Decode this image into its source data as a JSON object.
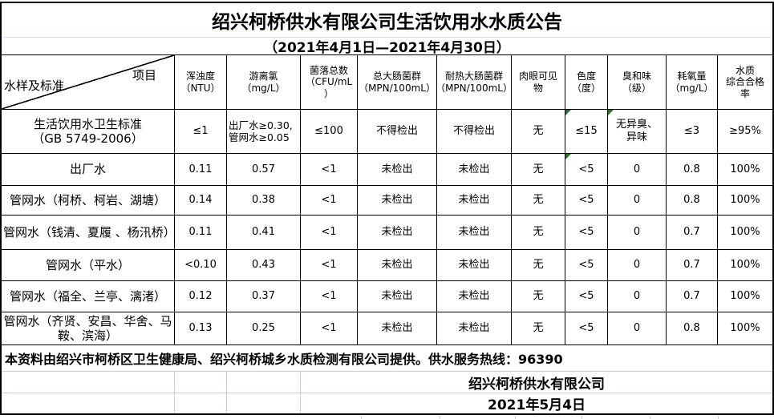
{
  "title": "绍兴柯桥供水有限公司生活饮用水水质公告",
  "subtitle": "（2021年4月1日—2021年4月30日）",
  "corner": {
    "item_label": "项目",
    "sample_label": "水样及标准"
  },
  "columns": [
    "浑浊度\n（NTU）",
    "游离氯\n（mg/L）",
    "菌落总数\n（CFU/mL\n）",
    "总大肠菌群\n（MPN/100mL）",
    "耐热大肠菌群\n（MPN/100mL）",
    "肉眼可见\n物",
    "色度\n（度）",
    "臭和味\n（级）",
    "耗氧量\n（mg/L）",
    "水质\n综合合格\n率"
  ],
  "rows": [
    {
      "label": "生活饮用水卫生标准\n（GB 5749-2006）",
      "values": [
        "≤1",
        "出厂水≥0.30,\n管网水≥0.05",
        "≤100",
        "不得检出",
        "不得检出",
        "无",
        "≤15",
        "无异臭、\n异味",
        "≤3",
        "≥95%"
      ]
    },
    {
      "label": "出厂水",
      "values": [
        "0.11",
        "0.57",
        "<1",
        "未检出",
        "未检出",
        "无",
        "<5",
        "0",
        "0.8",
        "100%"
      ]
    },
    {
      "label": "管网水（柯桥、柯岩、湖塘）",
      "values": [
        "0.14",
        "0.38",
        "<1",
        "未检出",
        "未检出",
        "无",
        "<5",
        "0",
        "0.8",
        "100%"
      ]
    },
    {
      "label": "管网水（钱清、夏履 、杨汛桥）",
      "values": [
        "0.11",
        "0.41",
        "<1",
        "未检出",
        "未检出",
        "无",
        "<5",
        "0",
        "0.7",
        "100%"
      ]
    },
    {
      "label": "管网水（平水）",
      "values": [
        "<0.10",
        "0.43",
        "<1",
        "未检出",
        "未检出",
        "无",
        "<5",
        "0",
        "0.7",
        "100%"
      ]
    },
    {
      "label": "管网水（福全、兰亭、漓渚）",
      "values": [
        "0.12",
        "0.37",
        "<1",
        "未检出",
        "未检出",
        "无",
        "<5",
        "0",
        "0.7",
        "100%"
      ]
    },
    {
      "label": "管网水（齐贤、安昌、华舍、马鞍、滨海）",
      "values": [
        "0.13",
        "0.25",
        "<1",
        "未检出",
        "未检出",
        "无",
        "<5",
        "0",
        "0.8",
        "100%"
      ]
    }
  ],
  "markers": [
    {
      "row": 0,
      "col": 7
    },
    {
      "row": 0,
      "col": 8
    },
    {
      "row": 1,
      "col": 7
    }
  ],
  "left_aligned_cells": [
    {
      "row": 0,
      "col": 2
    }
  ],
  "footer": {
    "note": "本资料由绍兴市柯桥区卫生健康局、绍兴柯桥城乡水质检测有限公司提供。供水服务热线：96390",
    "company": "绍兴柯桥供水有限公司",
    "date": "2021年5月4日"
  },
  "colors": {
    "marker_green": "#1d7a1d",
    "faint_gridline": "#c9cfda",
    "border_black": "#000000"
  }
}
